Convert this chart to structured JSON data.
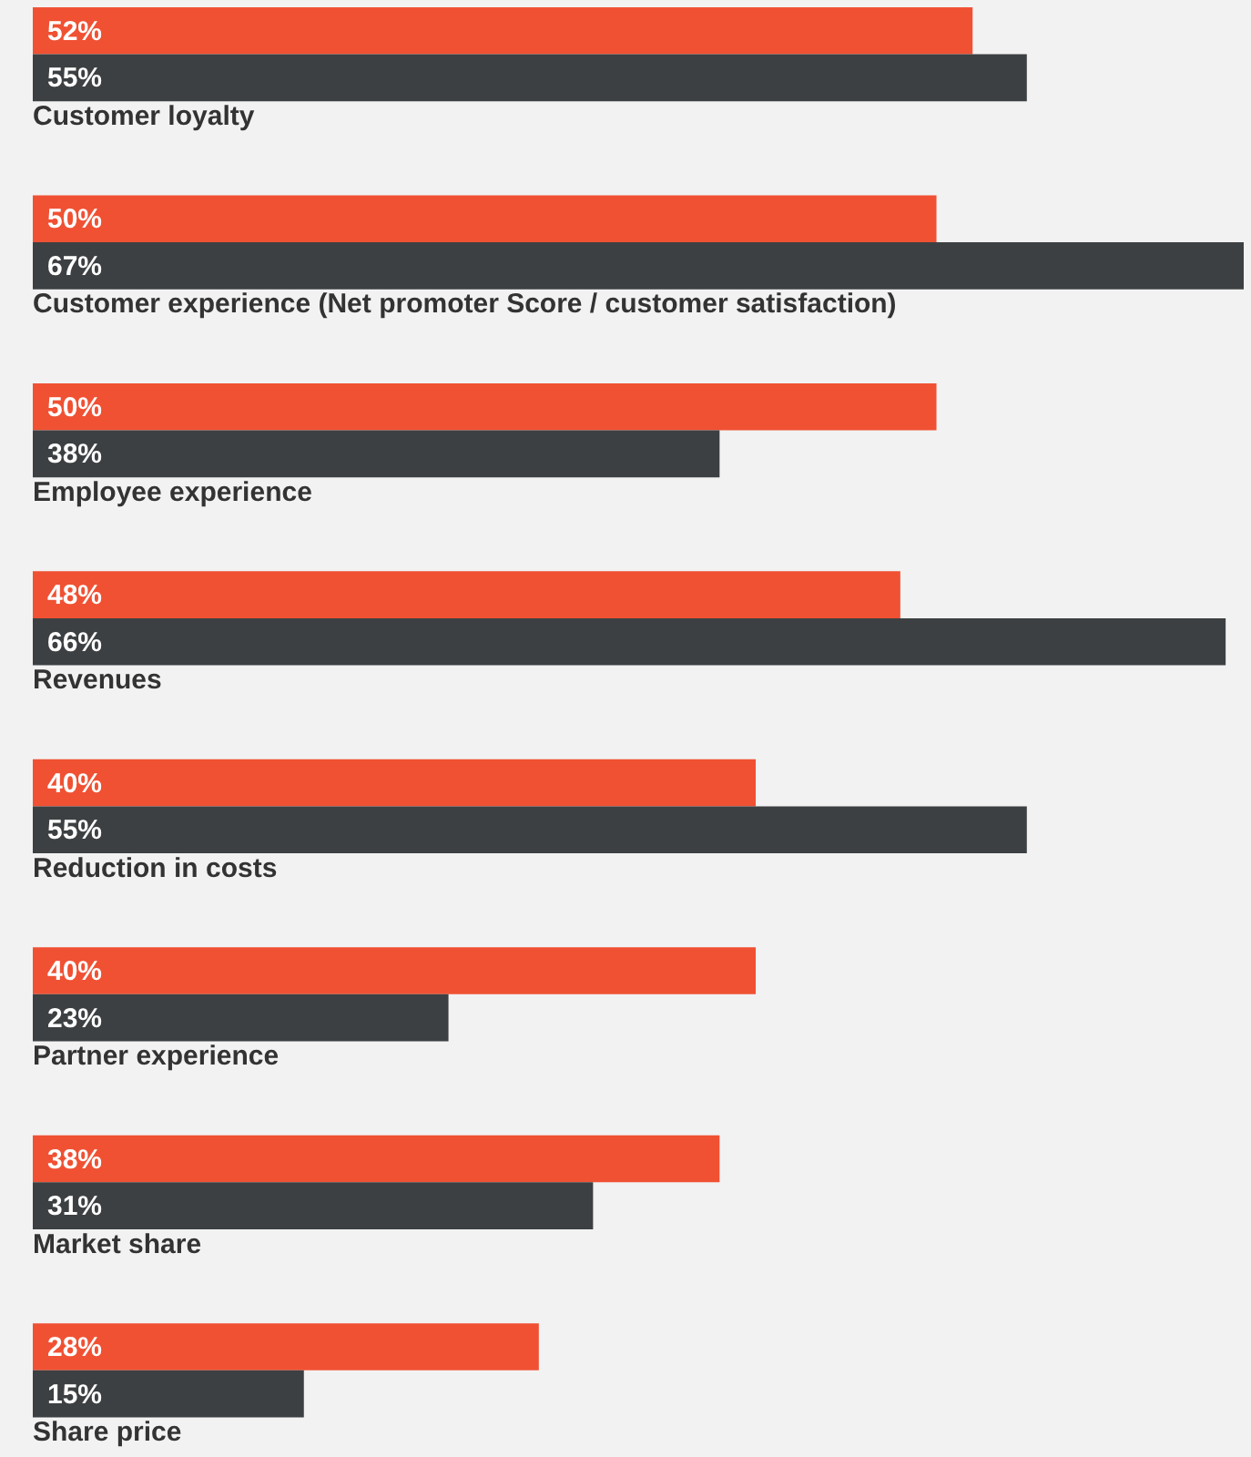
{
  "chart_data": {
    "type": "bar",
    "orientation": "horizontal",
    "categories": [
      "Customer loyalty",
      "Customer experience (Net promoter Score / customer satisfaction)",
      "Employee experience",
      "Revenues",
      "Reduction in costs",
      "Partner experience",
      "Market share",
      "Share price"
    ],
    "series": [
      {
        "color": "#f05133",
        "values": [
          52,
          50,
          50,
          48,
          40,
          40,
          38,
          28
        ],
        "value_labels": [
          "52%",
          "50%",
          "50%",
          "48%",
          "40%",
          "40%",
          "38%",
          "28%"
        ]
      },
      {
        "color": "#3d4042",
        "values": [
          55,
          67,
          38,
          66,
          55,
          23,
          31,
          15
        ],
        "value_labels": [
          "55%",
          "67%",
          "38%",
          "66%",
          "55%",
          "23%",
          "31%",
          "15%"
        ]
      }
    ]
  }
}
